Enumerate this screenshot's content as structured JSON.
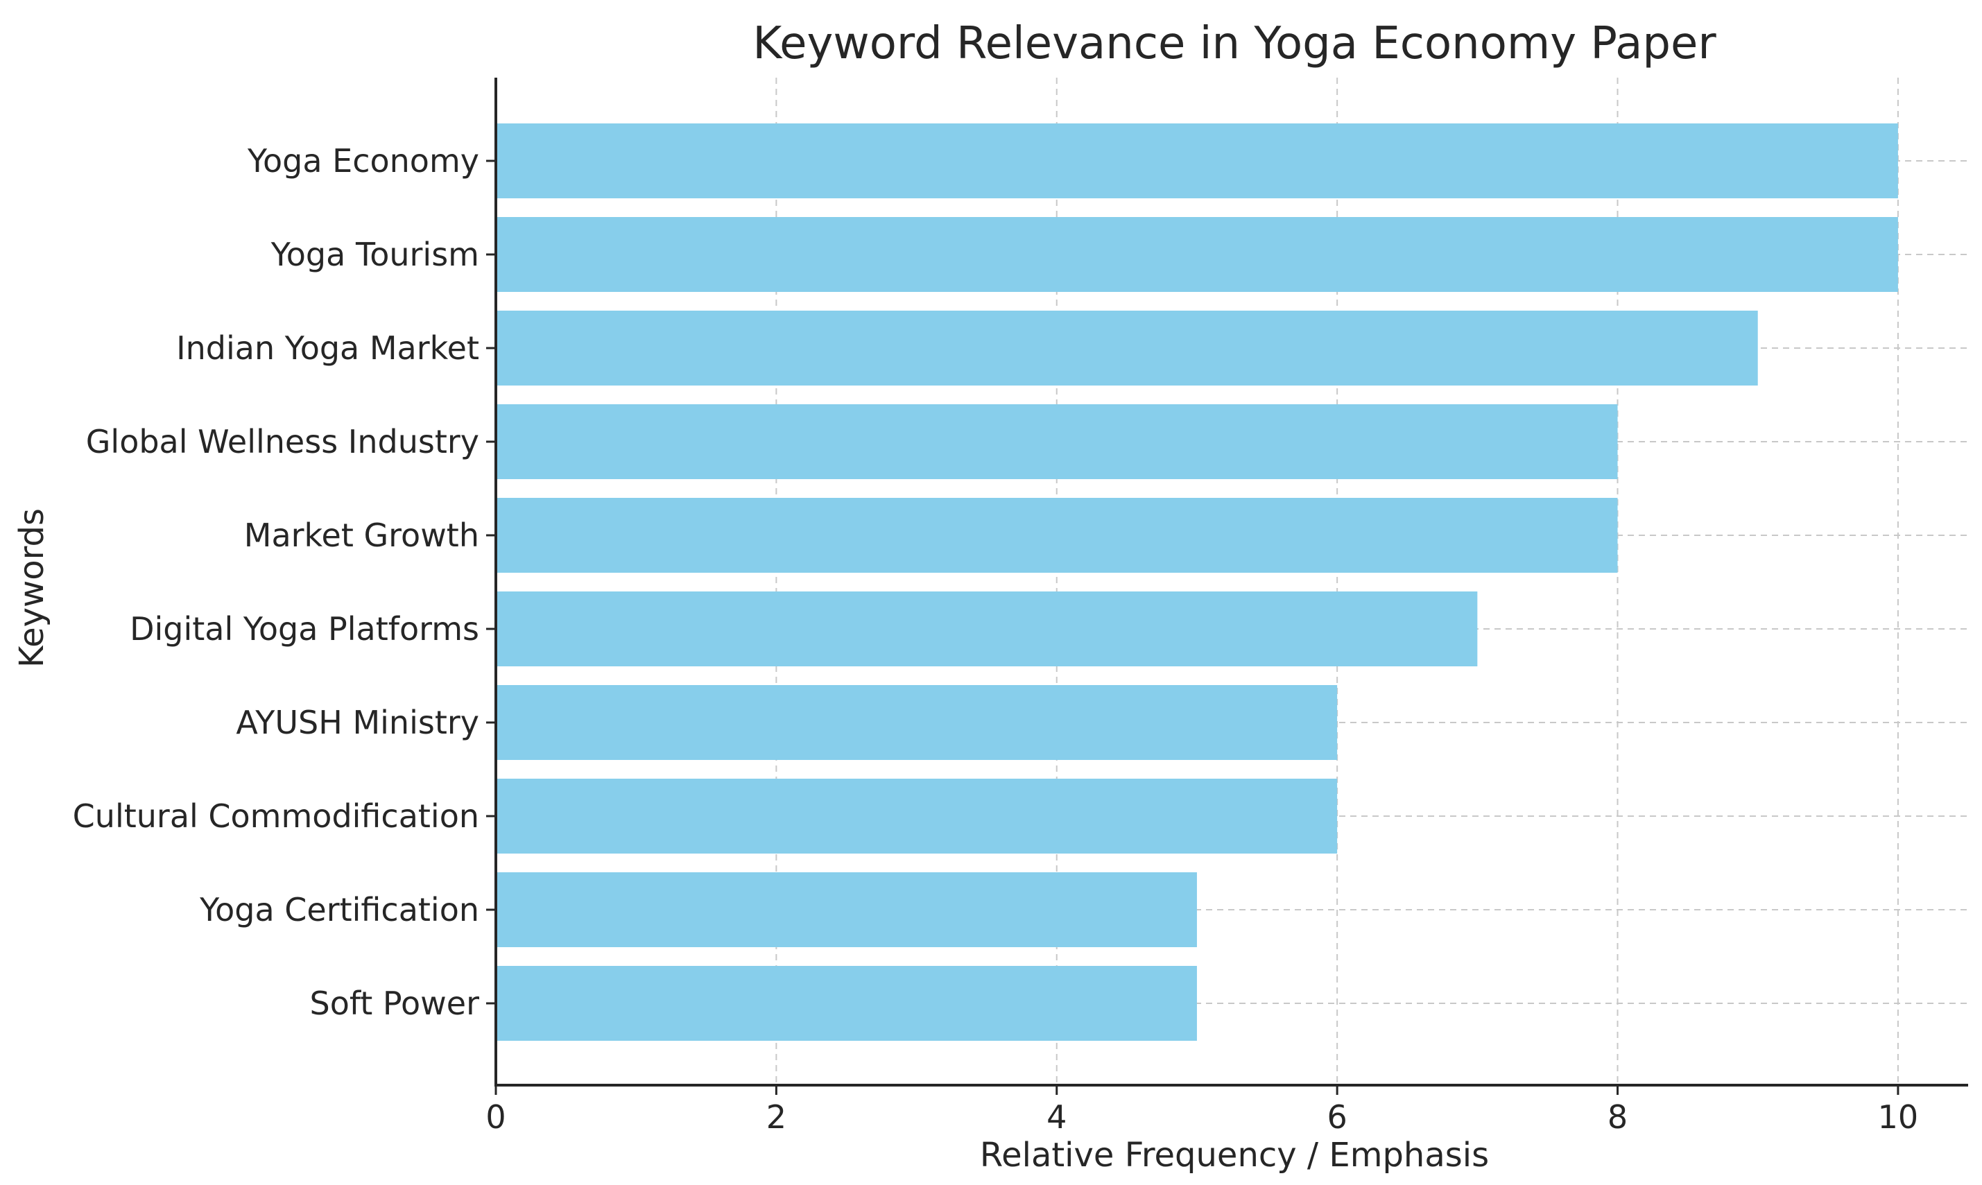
{
  "chart_data": {
    "type": "bar",
    "orientation": "horizontal",
    "title": "Keyword Relevance in Yoga Economy Paper",
    "xlabel": "Relative Frequency / Emphasis",
    "ylabel": "Keywords",
    "categories": [
      "Yoga Economy",
      "Yoga Tourism",
      "Indian Yoga Market",
      "Global Wellness Industry",
      "Market Growth",
      "Digital Yoga Platforms",
      "AYUSH Ministry",
      "Cultural Commodification",
      "Yoga Certification",
      "Soft Power"
    ],
    "values": [
      10,
      10,
      9,
      8,
      8,
      7,
      6,
      6,
      5,
      5
    ],
    "xlim": [
      0,
      10.5
    ],
    "xticks": [
      0,
      2,
      4,
      6,
      8,
      10
    ],
    "grid": true,
    "bar_color": "#87ceeb",
    "axis_color": "#262626",
    "grid_color": "#c8c8c8"
  }
}
